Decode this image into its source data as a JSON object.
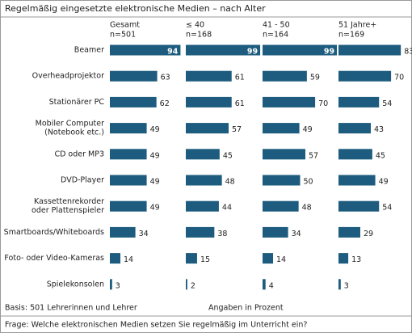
{
  "chart_data": {
    "type": "bar",
    "title": "Regelmäßig eingesetzte elektronische Medien – nach Alter",
    "categories": [
      "Beamer",
      "Overheadprojektor",
      "Stationärer PC",
      [
        "Mobiler Computer",
        "(Notebook etc.)"
      ],
      "CD oder MP3",
      "DVD-Player",
      [
        "Kassettenrekorder",
        "oder Plattenspieler"
      ],
      "Smartboards/Whiteboards",
      "Foto- oder Video-Kameras",
      "Spielekonsolen"
    ],
    "series": [
      {
        "name": "Gesamt",
        "n": "n=501",
        "color": "#1d5c7e",
        "values": [
          94,
          63,
          62,
          49,
          49,
          49,
          49,
          34,
          14,
          3
        ]
      },
      {
        "name": "≤ 40",
        "n": "n=168",
        "color": "#1d5c7e",
        "values": [
          99,
          61,
          61,
          57,
          45,
          48,
          44,
          38,
          15,
          2
        ]
      },
      {
        "name": "41 - 50",
        "n": "n=164",
        "color": "#1d5c7e",
        "values": [
          99,
          59,
          70,
          49,
          57,
          50,
          48,
          34,
          14,
          4
        ]
      },
      {
        "name": "51 Jahre+",
        "n": "n=169",
        "color": "#1d5c7e",
        "values": [
          83,
          70,
          54,
          43,
          45,
          49,
          54,
          29,
          13,
          3
        ]
      }
    ],
    "xlim": [
      0,
      100
    ],
    "basis": "Basis: 501 Lehrerinnen und Lehrer",
    "unit_note": "Angaben in Prozent",
    "question": "Frage: Welche elektronischen Medien setzen Sie regelmäßig im Unterricht ein?"
  }
}
